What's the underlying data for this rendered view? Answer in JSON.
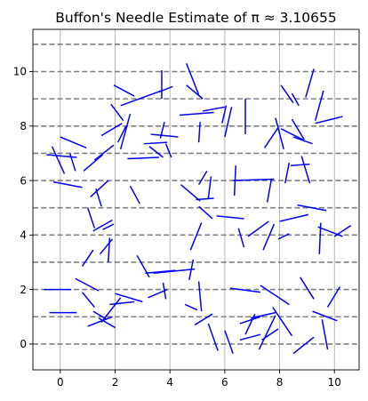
{
  "chart_data": {
    "type": "line",
    "title": "Buffon's Needle Estimate of π ≈ 3.10655",
    "xlabel": "",
    "ylabel": "",
    "xlim": [
      -1,
      10.9
    ],
    "ylim": [
      -0.95,
      11.55
    ],
    "x_ticks": [
      0,
      2,
      4,
      6,
      8,
      10
    ],
    "y_ticks": [
      0,
      2,
      4,
      6,
      8,
      10
    ],
    "grid": true,
    "grid_axis": "x",
    "legend": "none",
    "colors": {
      "needle": "#0000ff",
      "parallel_lines": "#808080",
      "grid": "#b0b0b0"
    },
    "parallel_lines_y": [
      0,
      1,
      2,
      3,
      4,
      5,
      6,
      7,
      8,
      9,
      10,
      11
    ],
    "needles": [
      [
        -0.6,
        2.0,
        0.4,
        2.0
      ],
      [
        -0.4,
        1.15,
        0.6,
        1.15
      ],
      [
        0.55,
        2.4,
        1.4,
        1.95
      ],
      [
        0.8,
        1.9,
        1.25,
        1.35
      ],
      [
        1.0,
        0.65,
        1.9,
        1.0
      ],
      [
        1.4,
        0.95,
        2.0,
        0.6
      ],
      [
        1.2,
        1.2,
        1.7,
        0.9
      ],
      [
        1.5,
        0.8,
        2.2,
        1.7
      ],
      [
        1.8,
        1.45,
        2.7,
        1.55
      ],
      [
        2.0,
        1.85,
        3.0,
        1.55
      ],
      [
        3.2,
        1.7,
        3.9,
        2.0
      ],
      [
        2.8,
        3.25,
        3.25,
        2.45
      ],
      [
        3.1,
        2.6,
        4.2,
        2.7
      ],
      [
        3.75,
        2.25,
        3.85,
        1.65
      ],
      [
        3.4,
        2.6,
        4.9,
        2.75
      ],
      [
        4.55,
        1.45,
        5.0,
        1.25
      ],
      [
        4.7,
        2.35,
        4.85,
        3.1
      ],
      [
        5.05,
        2.3,
        5.15,
        1.2
      ],
      [
        0.8,
        2.85,
        1.2,
        3.45
      ],
      [
        1.45,
        3.3,
        1.9,
        3.85
      ],
      [
        1.75,
        3.0,
        1.8,
        3.9
      ],
      [
        1.2,
        4.15,
        1.9,
        4.55
      ],
      [
        1.0,
        5.0,
        1.25,
        4.25
      ],
      [
        1.55,
        4.2,
        1.95,
        4.4
      ],
      [
        1.3,
        5.7,
        1.5,
        5.05
      ],
      [
        1.1,
        5.4,
        1.75,
        6.0
      ],
      [
        2.55,
        5.8,
        2.9,
        5.15
      ],
      [
        -0.25,
        5.95,
        0.8,
        5.75
      ],
      [
        -0.5,
        6.95,
        0.6,
        6.85
      ],
      [
        -0.3,
        7.25,
        0.15,
        6.25
      ],
      [
        0.35,
        7.0,
        0.55,
        6.35
      ],
      [
        0.0,
        7.6,
        0.95,
        7.2
      ],
      [
        0.85,
        6.35,
        1.55,
        6.95
      ],
      [
        1.25,
        6.75,
        1.95,
        7.3
      ],
      [
        1.5,
        7.65,
        2.25,
        8.1
      ],
      [
        2.1,
        7.4,
        2.4,
        8.0
      ],
      [
        1.85,
        8.8,
        2.3,
        8.2
      ],
      [
        2.2,
        7.15,
        2.55,
        8.45
      ],
      [
        2.45,
        6.8,
        3.6,
        6.85
      ],
      [
        3.05,
        7.35,
        3.9,
        7.4
      ],
      [
        3.25,
        7.25,
        3.75,
        6.85
      ],
      [
        3.3,
        7.7,
        4.3,
        7.6
      ],
      [
        3.65,
        7.55,
        3.8,
        8.15
      ],
      [
        4.05,
        6.85,
        3.85,
        7.35
      ],
      [
        2.2,
        8.75,
        3.7,
        9.3
      ],
      [
        1.95,
        9.5,
        2.7,
        9.1
      ],
      [
        3.6,
        9.25,
        4.1,
        9.45
      ],
      [
        3.7,
        9.0,
        3.7,
        10.05
      ],
      [
        4.6,
        9.5,
        5.2,
        9.0
      ],
      [
        4.6,
        10.3,
        5.05,
        9.15
      ],
      [
        4.35,
        8.4,
        5.6,
        8.5
      ],
      [
        5.2,
        8.55,
        6.0,
        8.7
      ],
      [
        5.05,
        7.4,
        5.1,
        8.15
      ],
      [
        6.0,
        7.6,
        6.25,
        8.7
      ],
      [
        5.9,
        8.1,
        6.05,
        8.75
      ],
      [
        6.75,
        7.7,
        6.75,
        9.0
      ],
      [
        5.55,
        4.6,
        5.05,
        5.05
      ],
      [
        4.4,
        5.85,
        5.1,
        5.25
      ],
      [
        4.95,
        5.3,
        5.6,
        5.35
      ],
      [
        5.05,
        5.85,
        5.35,
        6.35
      ],
      [
        5.4,
        5.35,
        5.5,
        6.15
      ],
      [
        4.75,
        3.45,
        5.15,
        4.45
      ],
      [
        6.35,
        5.45,
        6.4,
        6.55
      ],
      [
        6.3,
        6.0,
        7.8,
        6.05
      ],
      [
        7.55,
        5.2,
        7.7,
        6.05
      ],
      [
        5.7,
        4.7,
        6.7,
        4.6
      ],
      [
        6.7,
        3.55,
        6.5,
        4.25
      ],
      [
        6.85,
        3.95,
        7.6,
        4.5
      ],
      [
        7.4,
        3.45,
        7.8,
        4.4
      ],
      [
        7.95,
        3.85,
        8.35,
        4.05
      ],
      [
        8.0,
        4.5,
        9.05,
        4.75
      ],
      [
        8.65,
        5.1,
        9.7,
        4.9
      ],
      [
        9.4,
        4.3,
        10.3,
        3.95
      ],
      [
        9.45,
        3.3,
        9.5,
        4.45
      ],
      [
        10.0,
        3.95,
        10.6,
        4.35
      ],
      [
        6.2,
        2.05,
        7.3,
        1.9
      ],
      [
        7.3,
        2.15,
        8.35,
        1.45
      ],
      [
        7.75,
        1.35,
        8.45,
        0.3
      ],
      [
        8.75,
        2.45,
        9.25,
        1.65
      ],
      [
        9.2,
        1.2,
        10.1,
        0.85
      ],
      [
        9.75,
        1.35,
        10.2,
        2.1
      ],
      [
        9.55,
        0.9,
        9.75,
        -0.2
      ],
      [
        8.5,
        -0.35,
        9.25,
        0.25
      ],
      [
        7.35,
        0.15,
        7.95,
        0.55
      ],
      [
        7.25,
        -0.2,
        7.85,
        1.05
      ],
      [
        6.55,
        0.15,
        7.3,
        0.35
      ],
      [
        6.75,
        0.35,
        7.1,
        1.1
      ],
      [
        6.95,
        0.95,
        7.85,
        1.15
      ],
      [
        6.55,
        0.75,
        7.3,
        1.0
      ],
      [
        5.4,
        0.75,
        5.75,
        -0.25
      ],
      [
        6.0,
        0.5,
        6.3,
        -0.35
      ],
      [
        4.9,
        0.7,
        5.55,
        1.1
      ],
      [
        7.45,
        7.2,
        7.95,
        7.95
      ],
      [
        7.85,
        8.3,
        8.15,
        7.15
      ],
      [
        8.05,
        7.9,
        8.85,
        7.5
      ],
      [
        8.05,
        9.5,
        8.5,
        8.85
      ],
      [
        8.45,
        8.25,
        8.9,
        7.5
      ],
      [
        8.45,
        9.2,
        8.7,
        8.75
      ],
      [
        8.95,
        9.05,
        9.25,
        10.1
      ],
      [
        9.6,
        9.3,
        9.3,
        8.2
      ],
      [
        9.3,
        8.1,
        10.3,
        8.35
      ],
      [
        8.8,
        6.9,
        9.1,
        5.9
      ],
      [
        8.4,
        6.55,
        9.1,
        6.6
      ],
      [
        8.5,
        7.6,
        9.2,
        7.35
      ],
      [
        8.2,
        5.9,
        8.35,
        6.65
      ]
    ]
  }
}
